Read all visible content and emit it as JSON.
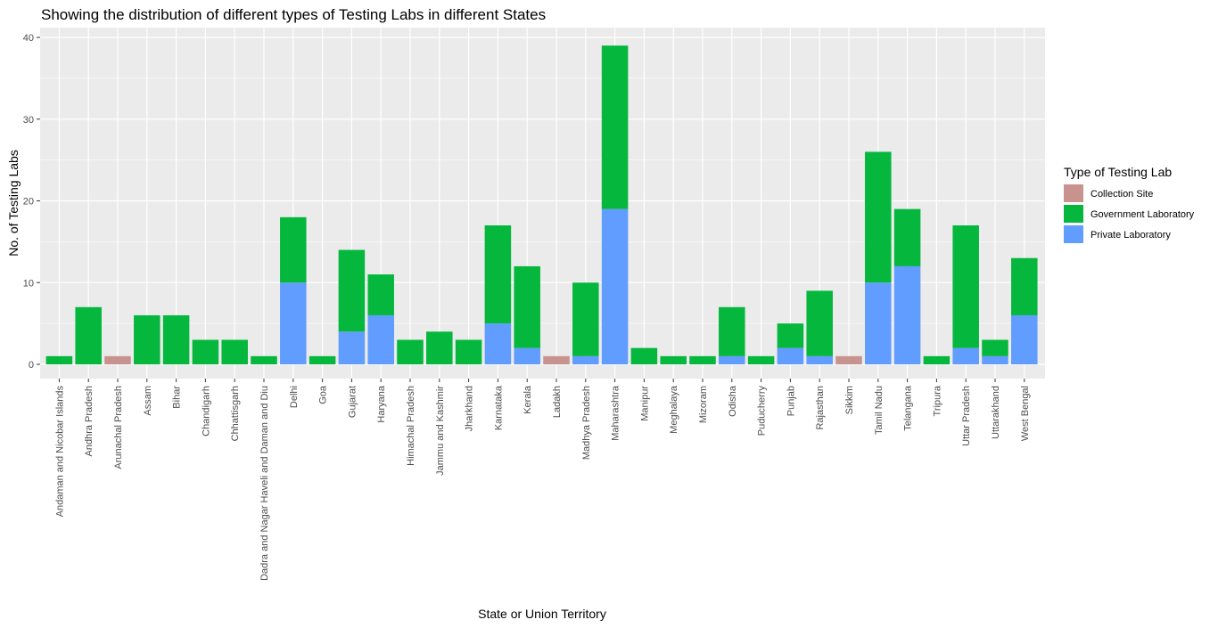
{
  "chart_data": {
    "type": "bar",
    "stacked": true,
    "title": "Showing the distribution of different types of Testing Labs in different States",
    "xlabel": "State or Union Territory",
    "ylabel": "No. of Testing Labs",
    "ylim": [
      0,
      40
    ],
    "yticks": [
      0,
      10,
      20,
      30,
      40
    ],
    "grid": true,
    "legend_position": "right",
    "legend_title": "Type of Testing Lab",
    "categories": [
      "Andaman and Nicobar Islands",
      "Andhra Pradesh",
      "Arunachal Pradesh",
      "Assam",
      "Bihar",
      "Chandigarh",
      "Chhattisgarh",
      "Dadra and Nagar Haveli and Daman and Diu",
      "Delhi",
      "Goa",
      "Gujarat",
      "Haryana",
      "Himachal Pradesh",
      "Jammu and Kashmir",
      "Jharkhand",
      "Karnataka",
      "Kerala",
      "Ladakh",
      "Madhya Pradesh",
      "Maharashtra",
      "Manipur",
      "Meghalaya",
      "Mizoram",
      "Odisha",
      "Puducherry",
      "Punjab",
      "Rajasthan",
      "Sikkim",
      "Tamil Nadu",
      "Telangana",
      "Tripura",
      "Uttar Pradesh",
      "Uttarakhand",
      "West Bengal"
    ],
    "series": [
      {
        "name": "Collection Site",
        "color": "#C8938E",
        "values": [
          0,
          0,
          1,
          0,
          0,
          0,
          0,
          0,
          0,
          0,
          0,
          0,
          0,
          0,
          0,
          0,
          0,
          1,
          0,
          0,
          0,
          0,
          0,
          0,
          0,
          0,
          0,
          1,
          0,
          0,
          0,
          0,
          0,
          0
        ]
      },
      {
        "name": "Government Laboratory",
        "color": "#05B73D",
        "values": [
          1,
          7,
          0,
          6,
          6,
          3,
          3,
          1,
          8,
          1,
          10,
          5,
          3,
          4,
          3,
          12,
          10,
          0,
          9,
          20,
          2,
          1,
          1,
          6,
          1,
          3,
          8,
          0,
          16,
          7,
          1,
          15,
          2,
          7
        ]
      },
      {
        "name": "Private Laboratory",
        "color": "#619CFF",
        "values": [
          0,
          0,
          0,
          0,
          0,
          0,
          0,
          0,
          10,
          0,
          4,
          6,
          0,
          0,
          0,
          5,
          2,
          0,
          1,
          19,
          0,
          0,
          0,
          1,
          0,
          2,
          1,
          0,
          10,
          12,
          0,
          2,
          1,
          6
        ]
      }
    ]
  }
}
